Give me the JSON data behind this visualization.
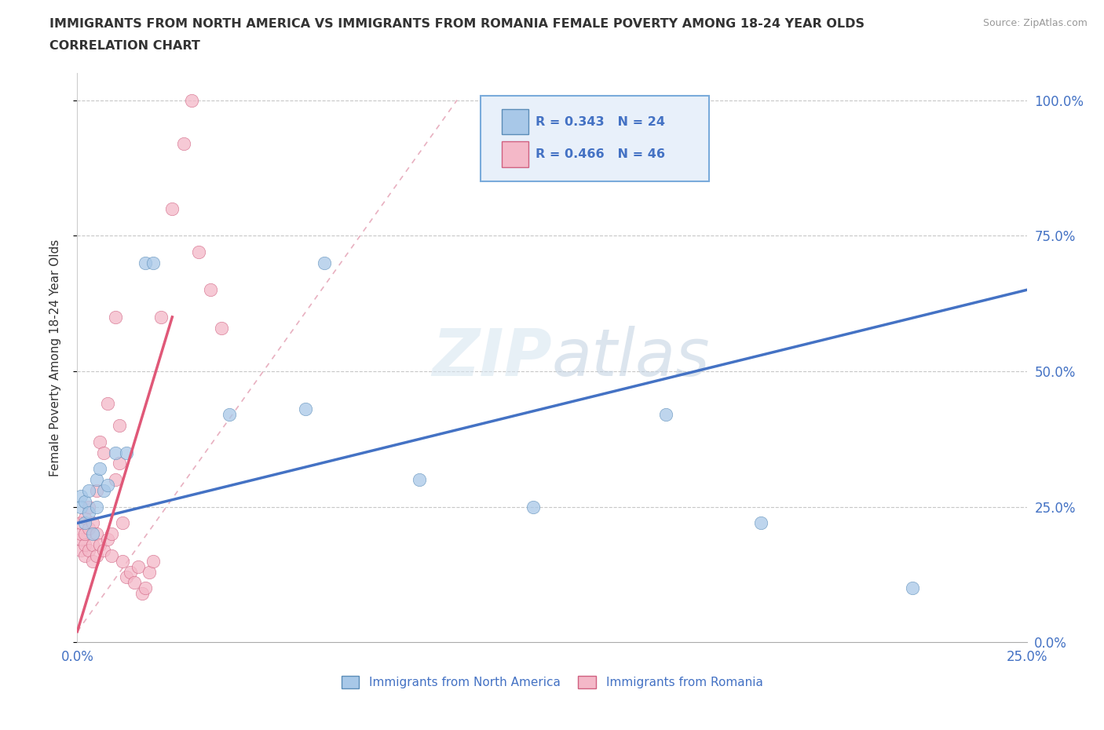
{
  "title_line1": "IMMIGRANTS FROM NORTH AMERICA VS IMMIGRANTS FROM ROMANIA FEMALE POVERTY AMONG 18-24 YEAR OLDS",
  "title_line2": "CORRELATION CHART",
  "source": "Source: ZipAtlas.com",
  "ylabel": "Female Poverty Among 18-24 Year Olds",
  "xlim": [
    0.0,
    0.25
  ],
  "ylim": [
    0.0,
    1.05
  ],
  "yticks": [
    0.0,
    0.25,
    0.5,
    0.75,
    1.0
  ],
  "ytick_labels": [
    "0.0%",
    "25.0%",
    "50.0%",
    "75.0%",
    "100.0%"
  ],
  "north_america_color": "#a8c8e8",
  "north_america_edge": "#5b8db8",
  "romania_color": "#f4b8c8",
  "romania_edge": "#d06080",
  "trendline_na_color": "#4472c4",
  "trendline_ro_color": "#e05878",
  "trendline_ro_dashed_color": "#e8b0c0",
  "watermark_color": "#ccdaec",
  "R_na": 0.343,
  "N_na": 24,
  "R_ro": 0.466,
  "N_ro": 46,
  "legend_face": "#e8f0fa",
  "legend_edge": "#7aabdb",
  "na_trendline_y0": 0.22,
  "na_trendline_y1": 0.65,
  "ro_trendline_x0": 0.0,
  "ro_trendline_y0": 0.02,
  "ro_trendline_x1": 0.025,
  "ro_trendline_y1": 0.6,
  "na_x": [
    0.001,
    0.001,
    0.002,
    0.002,
    0.003,
    0.003,
    0.004,
    0.005,
    0.005,
    0.006,
    0.007,
    0.008,
    0.01,
    0.013,
    0.018,
    0.02,
    0.04,
    0.06,
    0.065,
    0.09,
    0.12,
    0.155,
    0.18,
    0.22
  ],
  "na_y": [
    0.27,
    0.25,
    0.26,
    0.22,
    0.28,
    0.24,
    0.2,
    0.3,
    0.25,
    0.32,
    0.28,
    0.29,
    0.35,
    0.35,
    0.7,
    0.7,
    0.42,
    0.43,
    0.7,
    0.3,
    0.25,
    0.42,
    0.22,
    0.1
  ],
  "ro_x": [
    0.001,
    0.001,
    0.001,
    0.001,
    0.002,
    0.002,
    0.002,
    0.002,
    0.003,
    0.003,
    0.003,
    0.004,
    0.004,
    0.004,
    0.005,
    0.005,
    0.005,
    0.006,
    0.006,
    0.007,
    0.007,
    0.008,
    0.008,
    0.009,
    0.009,
    0.01,
    0.01,
    0.011,
    0.011,
    0.012,
    0.012,
    0.013,
    0.014,
    0.015,
    0.016,
    0.017,
    0.018,
    0.019,
    0.02,
    0.022,
    0.025,
    0.028,
    0.03,
    0.032,
    0.035,
    0.038
  ],
  "ro_y": [
    0.17,
    0.19,
    0.2,
    0.22,
    0.16,
    0.18,
    0.2,
    0.23,
    0.17,
    0.21,
    0.25,
    0.15,
    0.18,
    0.22,
    0.16,
    0.2,
    0.28,
    0.18,
    0.37,
    0.17,
    0.35,
    0.19,
    0.44,
    0.2,
    0.16,
    0.3,
    0.6,
    0.33,
    0.4,
    0.22,
    0.15,
    0.12,
    0.13,
    0.11,
    0.14,
    0.09,
    0.1,
    0.13,
    0.15,
    0.6,
    0.8,
    0.92,
    1.0,
    0.72,
    0.65,
    0.58
  ]
}
